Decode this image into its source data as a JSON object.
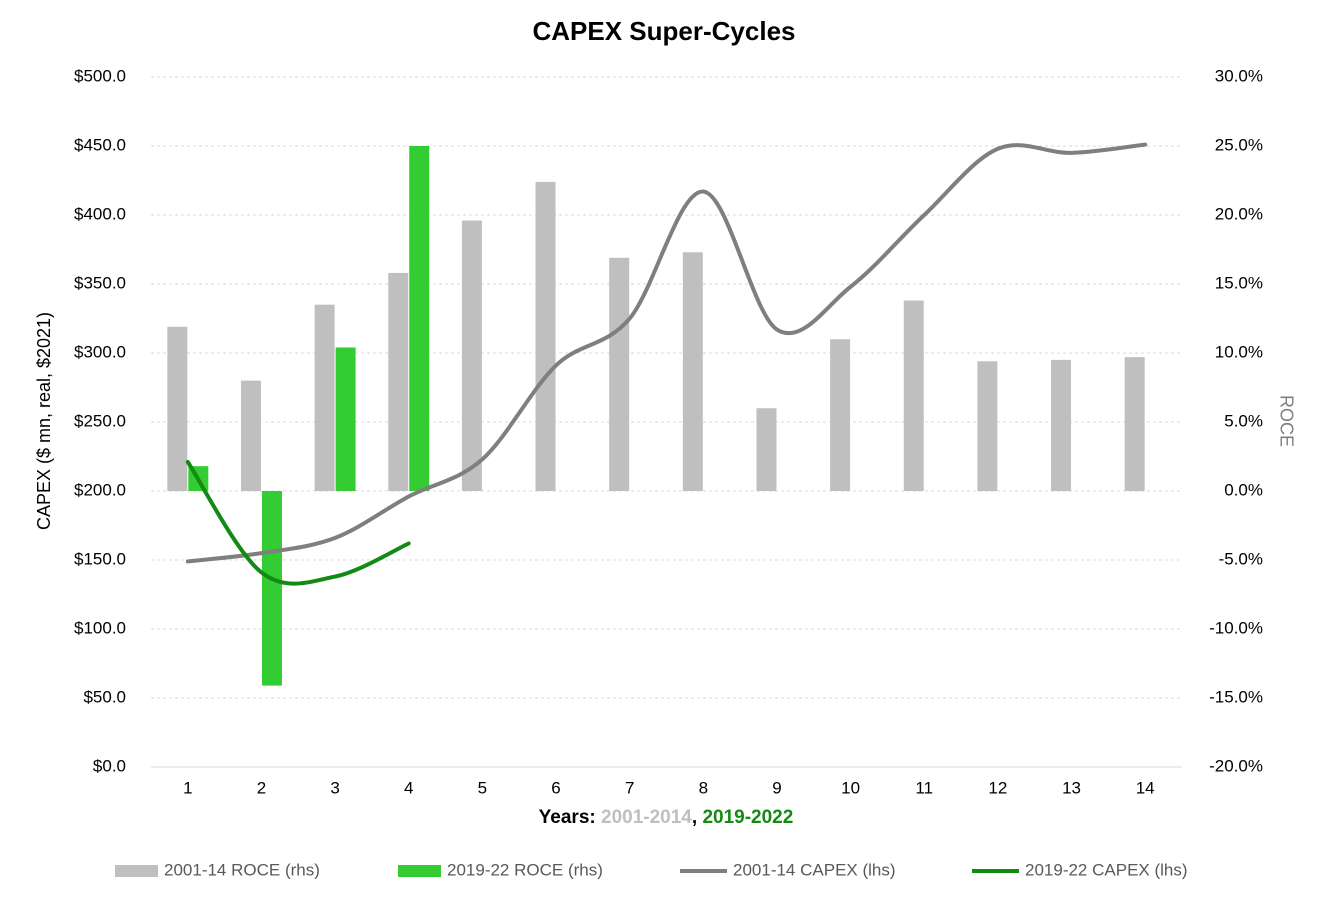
{
  "chart_data": {
    "type": "bar_line",
    "title": "CAPEX Super-Cycles",
    "x_label_parts": [
      {
        "text": "Years: ",
        "color": "#000000"
      },
      {
        "text": "2001-2014",
        "color": "#bfbfbf"
      },
      {
        "text": ", ",
        "color": "#000000"
      },
      {
        "text": "2019-2022",
        "color": "#138a13"
      }
    ],
    "y_label": "CAPEX ($ mn, real, $2021)",
    "y2_label": "ROCE",
    "categories": [
      "1",
      "2",
      "3",
      "4",
      "5",
      "6",
      "7",
      "8",
      "9",
      "10",
      "11",
      "12",
      "13",
      "14"
    ],
    "series": [
      {
        "name": "2001-14 ROCE (rhs)",
        "type": "bar",
        "axis": "y2",
        "color": "#bfbfbf",
        "values": [
          11.9,
          8.0,
          13.5,
          15.8,
          19.6,
          22.4,
          16.9,
          17.3,
          6.0,
          11.0,
          13.8,
          9.4,
          9.5,
          9.7
        ]
      },
      {
        "name": "2019-22 ROCE (rhs)",
        "type": "bar",
        "axis": "y2",
        "color": "#33cc33",
        "values": [
          1.8,
          -14.1,
          10.4,
          25.0,
          null,
          null,
          null,
          null,
          null,
          null,
          null,
          null,
          null,
          null
        ]
      },
      {
        "name": "2001-14 CAPEX (lhs)",
        "type": "line",
        "axis": "y",
        "color": "#7f7f7f",
        "values": [
          149,
          155,
          166,
          196,
          223,
          291,
          325,
          417,
          317,
          348,
          400,
          448,
          445,
          451
        ]
      },
      {
        "name": "2019-22 CAPEX (lhs)",
        "type": "line",
        "axis": "y",
        "color": "#138a13",
        "values": [
          221,
          141,
          138,
          162,
          null,
          null,
          null,
          null,
          null,
          null,
          null,
          null,
          null,
          null
        ]
      }
    ],
    "ylim": [
      0,
      500
    ],
    "yticks": [
      {
        "value": 0,
        "label": "$0.0"
      },
      {
        "value": 50,
        "label": "$50.0"
      },
      {
        "value": 100,
        "label": "$100.0"
      },
      {
        "value": 150,
        "label": "$150.0"
      },
      {
        "value": 200,
        "label": "$200.0"
      },
      {
        "value": 250,
        "label": "$250.0"
      },
      {
        "value": 300,
        "label": "$300.0"
      },
      {
        "value": 350,
        "label": "$350.0"
      },
      {
        "value": 400,
        "label": "$400.0"
      },
      {
        "value": 450,
        "label": "$450.0"
      },
      {
        "value": 500,
        "label": "$500.0"
      }
    ],
    "y2lim": [
      -20,
      30
    ],
    "y2ticks": [
      {
        "value": -20,
        "label": "-20.0%"
      },
      {
        "value": -15,
        "label": "-15.0%"
      },
      {
        "value": -10,
        "label": "-10.0%"
      },
      {
        "value": -5,
        "label": "-5.0%"
      },
      {
        "value": 0,
        "label": "0.0%"
      },
      {
        "value": 5,
        "label": "5.0%"
      },
      {
        "value": 10,
        "label": "10.0%"
      },
      {
        "value": 15,
        "label": "15.0%"
      },
      {
        "value": 20,
        "label": "20.0%"
      },
      {
        "value": 25,
        "label": "25.0%"
      },
      {
        "value": 30,
        "label": "30.0%"
      }
    ],
    "grid": true,
    "legend": "bottom"
  }
}
